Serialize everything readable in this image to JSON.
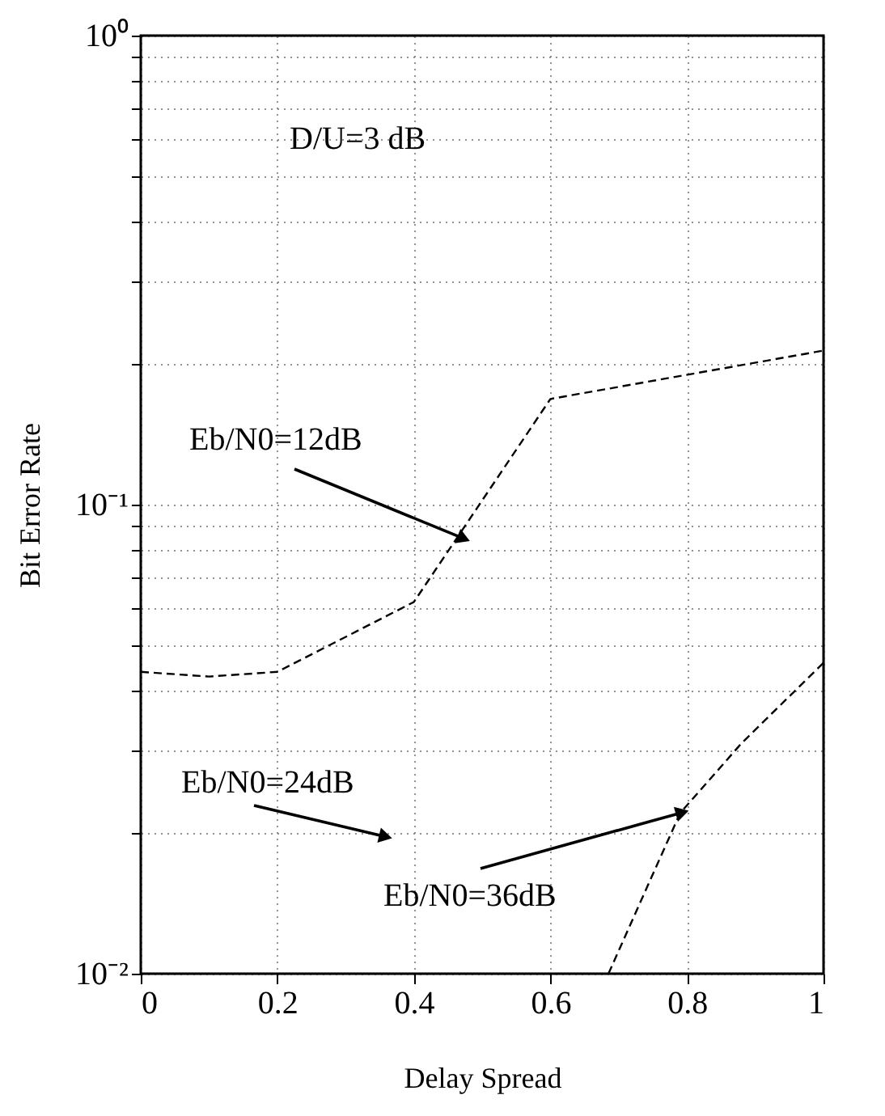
{
  "chart_data": {
    "type": "line",
    "xlabel": "Delay Spread",
    "ylabel": "Bit Error Rate",
    "series": [
      {
        "color": "#000000",
        "x": [
          0,
          0.1,
          0.2,
          0.4,
          0.6,
          1.0
        ],
        "values": [
          0.044,
          0.043,
          0.044,
          0.062,
          0.168,
          0.213
        ]
      },
      {
        "color": "#000000",
        "x": [
          0.685,
          0.79,
          0.88,
          1.0
        ],
        "values": [
          0.01,
          0.022,
          0.031,
          0.046
        ]
      }
    ],
    "log": "y",
    "xlim": [
      0,
      1
    ],
    "xticks": [
      0,
      0.2,
      0.4,
      0.6,
      0.8,
      1
    ],
    "ylim": [
      0.01,
      1
    ],
    "yticks": [
      {
        "value": 0.01,
        "label": "10⁻²"
      },
      {
        "value": 0.02,
        "label": null
      },
      {
        "value": 0.03,
        "label": null
      },
      {
        "value": 0.04,
        "label": null
      },
      {
        "value": 0.05,
        "label": null
      },
      {
        "value": 0.06,
        "label": null
      },
      {
        "value": 0.07,
        "label": null
      },
      {
        "value": 0.08,
        "label": null
      },
      {
        "value": 0.09,
        "label": null
      },
      {
        "value": 0.1,
        "label": "10⁻¹"
      },
      {
        "value": 0.2,
        "label": null
      },
      {
        "value": 0.3,
        "label": null
      },
      {
        "value": 0.4,
        "label": null
      },
      {
        "value": 0.5,
        "label": null
      },
      {
        "value": 0.6,
        "label": null
      },
      {
        "value": 0.7,
        "label": null
      },
      {
        "value": 0.8,
        "label": null
      },
      {
        "value": 0.9,
        "label": null
      },
      {
        "value": 1,
        "label": "10⁰"
      }
    ],
    "grid": true,
    "legend": false,
    "line_style": "dashed",
    "marker": "none",
    "annotations": [
      "D/U=3 dB",
      {
        "text": "Eb/N0=12dB",
        "x": 0.47,
        "y": 0.085
      },
      "Eb/N0=24dB",
      {
        "text": "Eb/N0=36dB",
        "x": 0.79,
        "y": 0.022
      }
    ]
  }
}
